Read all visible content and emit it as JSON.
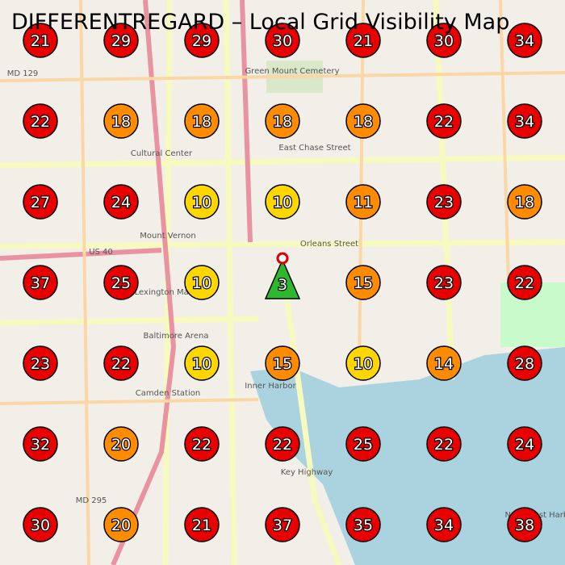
{
  "title": "DIFFERENTREGARD – Local Grid Visibility Map",
  "grid": {
    "rows": [
      [
        21,
        29,
        29,
        30,
        21,
        30,
        34
      ],
      [
        22,
        18,
        18,
        18,
        18,
        22,
        34
      ],
      [
        27,
        24,
        10,
        10,
        11,
        23,
        18
      ],
      [
        37,
        25,
        10,
        null,
        15,
        23,
        22
      ],
      [
        23,
        22,
        10,
        15,
        10,
        14,
        28
      ],
      [
        32,
        20,
        22,
        22,
        25,
        22,
        24
      ],
      [
        30,
        20,
        21,
        37,
        35,
        34,
        38
      ]
    ],
    "colors": [
      [
        "#e80000",
        "#e80000",
        "#e80000",
        "#e80000",
        "#e80000",
        "#e80000",
        "#e80000"
      ],
      [
        "#e80000",
        "#ff8c00",
        "#ff8c00",
        "#ff8c00",
        "#ff8c00",
        "#e80000",
        "#e80000"
      ],
      [
        "#e80000",
        "#e80000",
        "#ffd700",
        "#ffd700",
        "#ff8c00",
        "#e80000",
        "#ff8c00"
      ],
      [
        "#e80000",
        "#e80000",
        "#ffd700",
        null,
        "#ff8c00",
        "#e80000",
        "#e80000"
      ],
      [
        "#e80000",
        "#e80000",
        "#ffd700",
        "#ff8c00",
        "#ffd700",
        "#ff8c00",
        "#e80000"
      ],
      [
        "#e80000",
        "#ff8c00",
        "#e80000",
        "#e80000",
        "#e80000",
        "#e80000",
        "#e80000"
      ],
      [
        "#e80000",
        "#ff8c00",
        "#e80000",
        "#e80000",
        "#e80000",
        "#e80000",
        "#e80000"
      ]
    ]
  },
  "origin": {
    "value": 3,
    "color": "#2db82d"
  },
  "map_labels": [
    "Green Mount Cemetery",
    "East Chase Street",
    "Orleans Street",
    "US 40",
    "MD 129",
    "MD 295",
    "Inner Harbor",
    "Key Highway",
    "Camden Station",
    "Baltimore Arena",
    "Lexington Market",
    "Mount Vernon",
    "Cultural Center",
    "Northwest Harbor"
  ]
}
